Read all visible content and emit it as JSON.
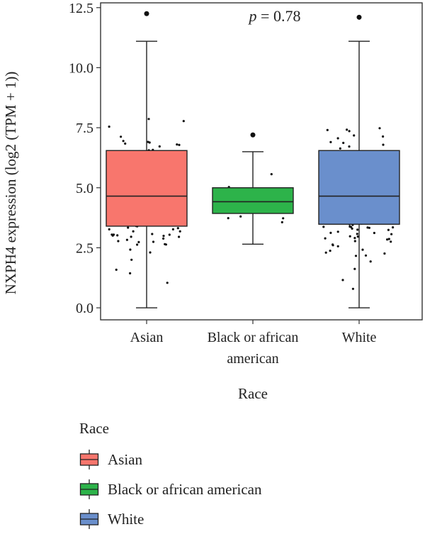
{
  "chart_data": {
    "type": "box",
    "ylabel": "NXPH4 expression (log2 (TPM + 1))",
    "xlabel": "Race",
    "annotation": "p = 0.78",
    "annotation_parts": {
      "italic": "p",
      "rest": " = 0.78"
    },
    "ylim": [
      -0.5,
      12.7
    ],
    "y_ticks": [
      0.0,
      2.5,
      5.0,
      7.5,
      10.0,
      12.5
    ],
    "y_tick_labels": [
      "0.0",
      "2.5",
      "5.0",
      "7.5",
      "10.0",
      "12.5"
    ],
    "categories": [
      "Asian",
      "Black or african american",
      "White"
    ],
    "category_label_lines": [
      [
        "Asian"
      ],
      [
        "Black or african",
        "american"
      ],
      [
        "White"
      ]
    ],
    "series": [
      {
        "name": "Asian",
        "color": "#F8766D",
        "q1": 3.4,
        "median": 4.65,
        "q3": 6.55,
        "whisker_low": 0.0,
        "whisker_high": 11.1,
        "outliers": [
          12.25
        ]
      },
      {
        "name": "Black or african american",
        "color": "#2DB34A",
        "q1": 3.93,
        "median": 4.42,
        "q3": 5.0,
        "whisker_low": 2.65,
        "whisker_high": 6.5,
        "outliers": [
          7.2
        ]
      },
      {
        "name": "White",
        "color": "#6A8FCC",
        "q1": 3.48,
        "median": 4.65,
        "q3": 6.55,
        "whisker_low": 0.0,
        "whisker_high": 11.1,
        "outliers": [
          12.1
        ]
      }
    ],
    "grid": false,
    "legend": {
      "title": "Race",
      "position": "bottom-left",
      "entries": [
        "Asian",
        "Black or african american",
        "White"
      ]
    }
  }
}
